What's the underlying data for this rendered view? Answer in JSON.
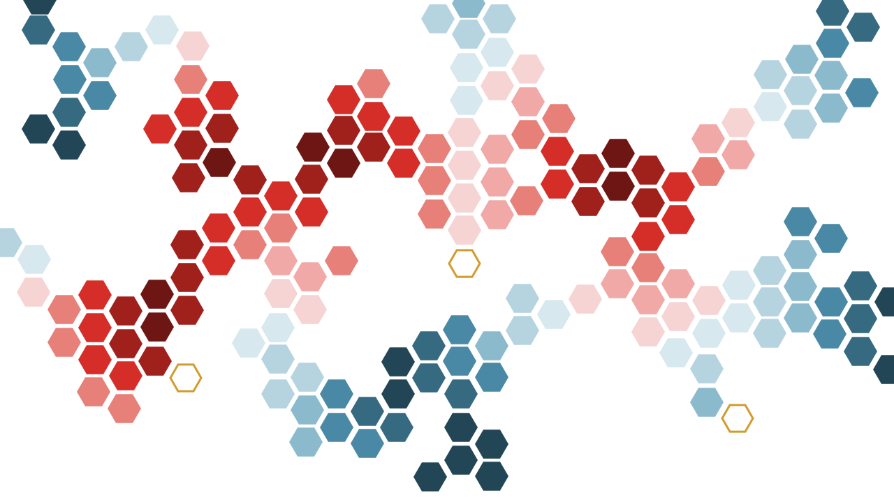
{
  "palette": {
    "background": "#ffffff",
    "red_darkest": "#6e1614",
    "red_dark": "#a0201c",
    "red": "#d52e28",
    "red_salmon": "#e8807a",
    "red_pink": "#f0a9a6",
    "red_pale": "#f6d4d3",
    "blue_navy": "#234657",
    "blue_slate": "#366a80",
    "blue_steel": "#4a89a6",
    "blue_mid": "#8cbacd",
    "blue_light": "#b6d4df",
    "blue_pale": "#d7e8ef",
    "gold_outline": "#d29b2e"
  },
  "hex_groups": {
    "red_cluster_count": 88,
    "blue_cluster_count": 95,
    "gold_outline_count": 3
  }
}
